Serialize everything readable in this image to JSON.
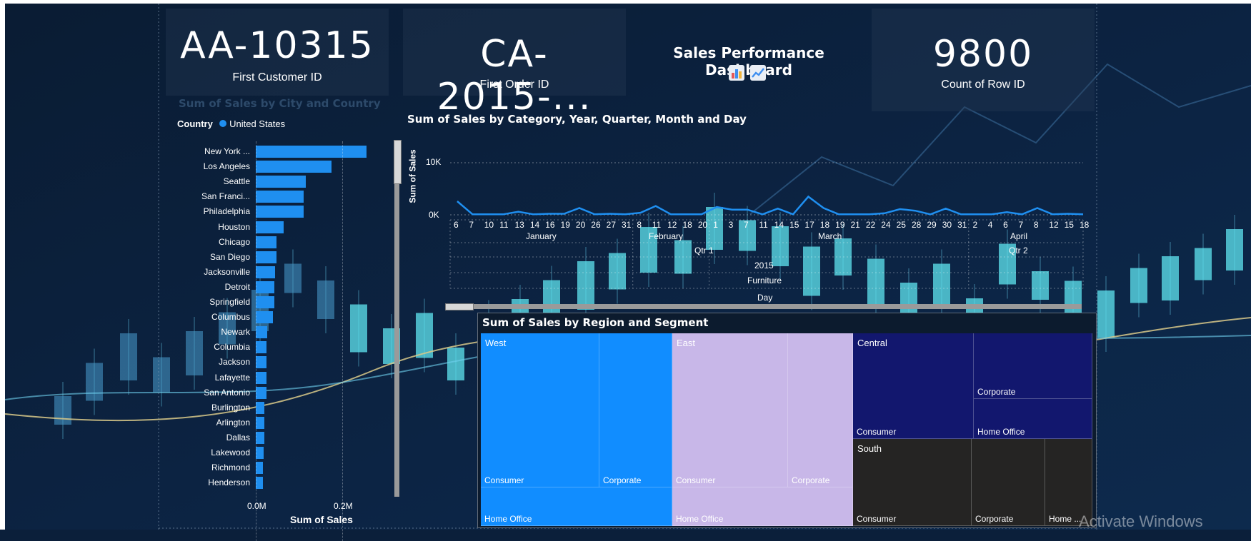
{
  "kpis": {
    "customer": {
      "value": "AA-10315",
      "label": "First Customer ID"
    },
    "order": {
      "value": "CA-2015-...",
      "label": "First Order ID"
    },
    "count": {
      "value": "9800",
      "label": "Count of Row ID"
    }
  },
  "dashboard": {
    "title": "Sales Performance Dashboard",
    "icons": [
      "bar-chart-icon",
      "line-chart-icon"
    ]
  },
  "city_chart": {
    "faded_title": "Sum of Sales by City and Country",
    "legend_title": "Country",
    "legend_item": "United States",
    "legend_color": "#1f8ff0",
    "xlabel": "Sum of Sales",
    "ticks": [
      "0.0M",
      "0.2M"
    ]
  },
  "category_chart": {
    "title": "Sum of Sales by Category, Year, Quarter, Month and Day",
    "ylabel": "Sum of Sales",
    "yticks": [
      "10K",
      "0K"
    ],
    "day_labels": [
      "6",
      "7",
      "10",
      "11",
      "13",
      "14",
      "16",
      "19",
      "20",
      "26",
      "27",
      "31",
      "8",
      "11",
      "12",
      "18",
      "20",
      "1",
      "3",
      "7",
      "11",
      "14",
      "15",
      "17",
      "18",
      "19",
      "21",
      "22",
      "24",
      "25",
      "28",
      "29",
      "30",
      "31",
      "2",
      "4",
      "6",
      "7",
      "8",
      "12",
      "15",
      "18"
    ],
    "months": [
      "January",
      "February",
      "March",
      "April"
    ],
    "quarters": [
      "Qtr 1",
      "Qtr 2"
    ],
    "year": "2015",
    "category": "Furniture",
    "level": "Day"
  },
  "treemap": {
    "title": "Sum of Sales by Region and Segment",
    "west": {
      "name": "West",
      "consumer": "Consumer",
      "corporate": "Corporate",
      "home_office": "Home Office"
    },
    "east": {
      "name": "East",
      "consumer": "Consumer",
      "corporate": "Corporate",
      "home_office": "Home Office"
    },
    "central": {
      "name": "Central",
      "consumer": "Consumer",
      "corporate": "Corporate",
      "home_office": "Home Office"
    },
    "south": {
      "name": "South",
      "consumer": "Consumer",
      "corporate": "Corporate",
      "home_office": "Home ..."
    }
  },
  "colors": {
    "west": "#118dff",
    "east": "#c8b7e8",
    "central": "#12176e",
    "south": "#252423",
    "bar": "#1f8ff0",
    "line": "#1f8ff0"
  },
  "watermark": "Activate Windows",
  "chart_data": [
    {
      "type": "bar",
      "title": "",
      "xlabel": "Sum of Sales",
      "ylabel": "",
      "series": [
        {
          "name": "United States",
          "values": [
            0.256,
            0.175,
            0.116,
            0.11,
            0.11,
            0.064,
            0.048,
            0.048,
            0.045,
            0.043,
            0.043,
            0.039,
            0.026,
            0.024,
            0.024,
            0.024,
            0.024,
            0.02,
            0.02,
            0.02,
            0.018,
            0.016,
            0.016
          ]
        }
      ],
      "categories": [
        "New York ...",
        "Los Angeles",
        "Seattle",
        "San Franci...",
        "Philadelphia",
        "Houston",
        "Chicago",
        "San Diego",
        "Jacksonville",
        "Detroit",
        "Springfield",
        "Columbus",
        "Newark",
        "Columbia",
        "Jackson",
        "Lafayette",
        "San Antonio",
        "Burlington",
        "Arlington",
        "Dallas",
        "Lakewood",
        "Richmond",
        "Henderson"
      ],
      "xlim": [
        0,
        0.3
      ],
      "legend": "top-left"
    },
    {
      "type": "line",
      "title": "Sum of Sales by Category, Year, Quarter, Month and Day",
      "ylabel": "Sum of Sales",
      "ylim": [
        0,
        14000
      ],
      "x": [
        "6",
        "7",
        "10",
        "11",
        "13",
        "14",
        "16",
        "19",
        "20",
        "26",
        "27",
        "31",
        "8",
        "11",
        "12",
        "18",
        "20",
        "1",
        "3",
        "7",
        "11",
        "14",
        "15",
        "17",
        "18",
        "19",
        "21",
        "22",
        "24",
        "25",
        "28",
        "29",
        "30",
        "31",
        "2",
        "4",
        "6",
        "7",
        "8",
        "12",
        "15",
        "18"
      ],
      "values": [
        2600,
        100,
        100,
        100,
        600,
        100,
        200,
        200,
        1300,
        100,
        200,
        100,
        400,
        1700,
        100,
        100,
        100,
        1500,
        1000,
        1000,
        100,
        1200,
        100,
        3500,
        1300,
        100,
        100,
        100,
        300,
        1100,
        800,
        100,
        1200,
        100,
        100,
        100,
        500,
        100,
        1300,
        100,
        200,
        100
      ]
    }
  ]
}
